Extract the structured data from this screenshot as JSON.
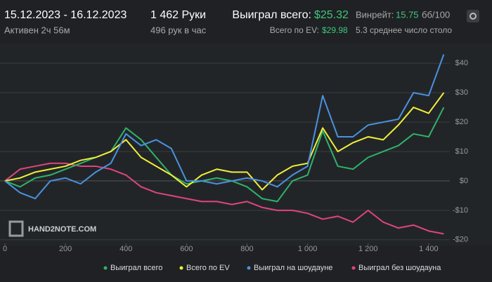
{
  "header": {
    "date_range": "15.12.2023 - 16.12.2023",
    "active": "Активен 2ч 56м",
    "hands": "1 462 Руки",
    "hands_per_hour": "496 рук в час",
    "won_label": "Выиграл всего:",
    "won_value": "$25.32",
    "ev_label": "Всего по EV:",
    "ev_value": "$29.98",
    "winrate_label": "Винрейт:",
    "winrate_value": "15.75",
    "winrate_unit": "бб/100",
    "tables": "5.3 среднее число столо"
  },
  "chart_data": {
    "type": "line",
    "watermark": "HAND2NOTE.COM",
    "x": [
      0,
      50,
      100,
      150,
      200,
      250,
      300,
      350,
      400,
      450,
      500,
      550,
      600,
      650,
      700,
      750,
      800,
      850,
      900,
      950,
      1000,
      1050,
      1100,
      1150,
      1200,
      1250,
      1300,
      1350,
      1400,
      1450
    ],
    "series": [
      {
        "name": "Выиграл всего",
        "color": "#2fb36a",
        "values": [
          0,
          -2,
          1,
          2,
          4,
          6,
          8,
          10,
          18,
          14,
          8,
          2,
          -1,
          0,
          1,
          0,
          -2,
          -6,
          -7,
          0,
          2,
          17,
          5,
          4,
          8,
          10,
          12,
          16,
          15,
          25
        ]
      },
      {
        "name": "Всего по EV",
        "color": "#f2ee3a",
        "values": [
          0,
          1,
          3,
          4,
          5,
          7,
          8,
          10,
          14,
          8,
          5,
          2,
          -2,
          2,
          4,
          3,
          3,
          -3,
          2,
          5,
          6,
          18,
          10,
          13,
          15,
          14,
          19,
          25,
          23,
          30
        ]
      },
      {
        "name": "Выиграл на шоудауне",
        "color": "#4a92e0",
        "values": [
          0,
          -4,
          -6,
          0,
          1,
          -1,
          3,
          6,
          16,
          12,
          14,
          11,
          0,
          0,
          -1,
          0,
          1,
          0,
          -2,
          2,
          5,
          29,
          15,
          15,
          19,
          20,
          21,
          30,
          29,
          43
        ]
      },
      {
        "name": "Выиграл без шоудауна",
        "color": "#e0457b",
        "values": [
          0,
          4,
          5,
          6,
          6,
          5,
          5,
          4,
          2,
          -2,
          -4,
          -5,
          -6,
          -7,
          -7,
          -8,
          -7,
          -9,
          -10,
          -10,
          -11,
          -13,
          -12,
          -14,
          -10,
          -14,
          -16,
          -15,
          -17,
          -18
        ]
      }
    ],
    "xlim": [
      0,
      1470
    ],
    "ylim": [
      -21,
      46
    ],
    "xticks": [
      0,
      200,
      400,
      600,
      800,
      {
        "value": 1000,
        "label": "1 000"
      },
      {
        "value": 1200,
        "label": "1 200"
      },
      {
        "value": 1400,
        "label": "1 400"
      }
    ],
    "yticks": [
      {
        "value": 40,
        "label": "$40"
      },
      {
        "value": 30,
        "label": "$30"
      },
      {
        "value": 20,
        "label": "$20"
      },
      {
        "value": 10,
        "label": "$10"
      },
      {
        "value": 0,
        "label": "$0"
      },
      {
        "value": -10,
        "label": "-$10"
      },
      {
        "value": -20,
        "label": "-$20"
      }
    ],
    "grid": true
  }
}
